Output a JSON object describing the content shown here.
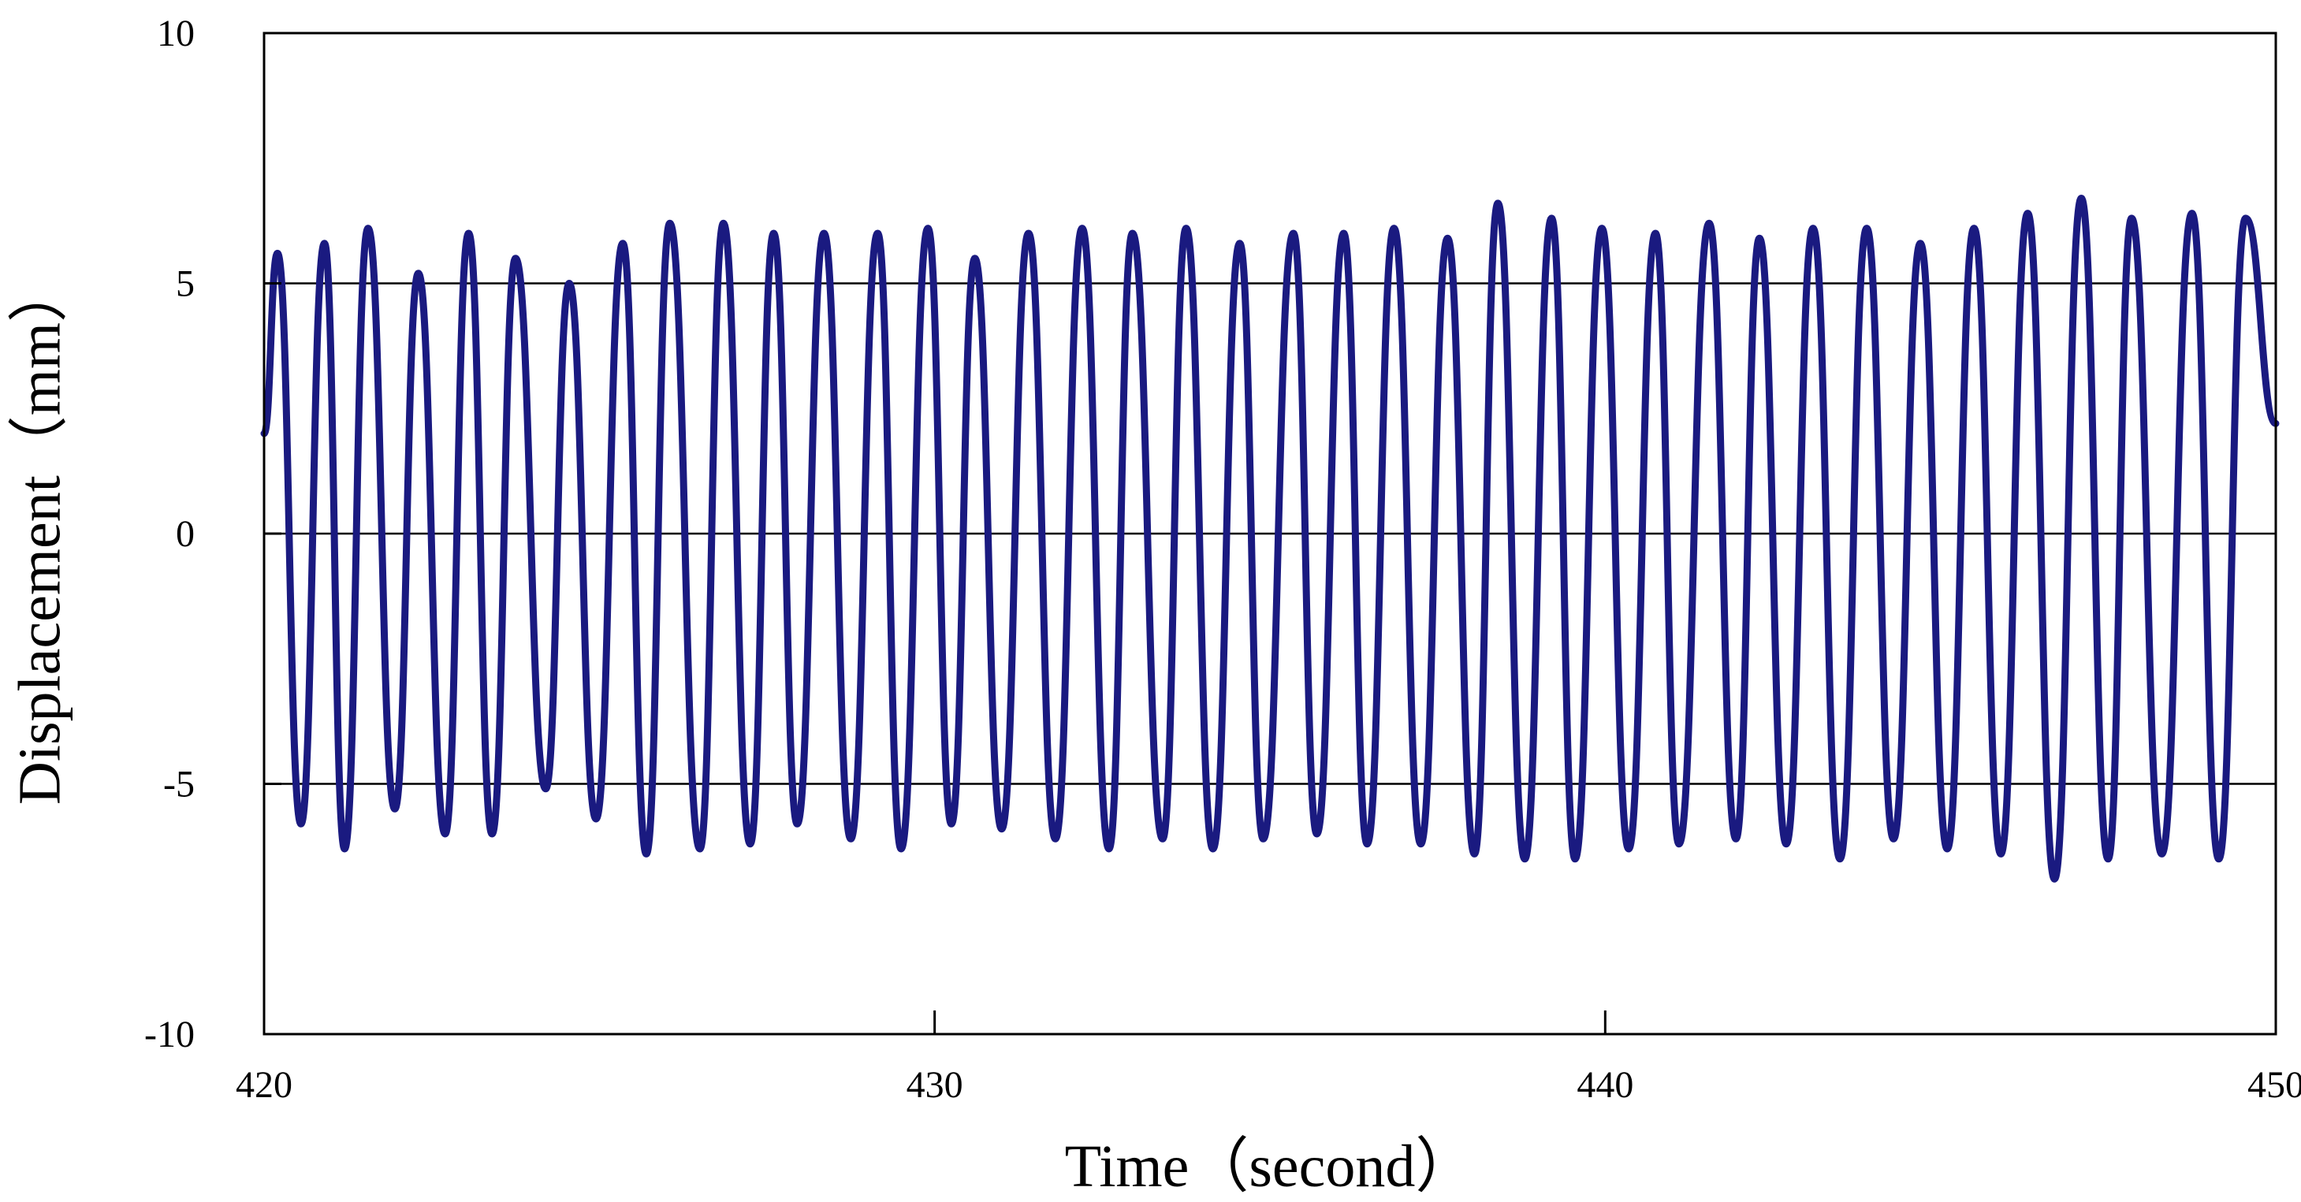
{
  "chart_data": {
    "type": "line",
    "title": "",
    "xlabel": "Time（second）",
    "ylabel": "Displacement（mm）",
    "xlim": [
      420,
      450
    ],
    "ylim": [
      -10,
      10
    ],
    "xticks": [
      {
        "value": 420,
        "label": "420"
      },
      {
        "value": 430,
        "label": "430"
      },
      {
        "value": 440,
        "label": "440"
      },
      {
        "value": 450,
        "label": "450"
      }
    ],
    "yticks": [
      {
        "value": 10,
        "label": "10"
      },
      {
        "value": 5,
        "label": "5"
      },
      {
        "value": 0,
        "label": "0"
      },
      {
        "value": -5,
        "label": "-5"
      },
      {
        "value": -10,
        "label": "-10"
      }
    ],
    "gridlines_y": [
      5,
      0,
      -5
    ],
    "grid": "horizontal",
    "legend": "none",
    "colors": {
      "line": "#1a1a80",
      "axis": "#000000",
      "grid": "#000000"
    },
    "series": [
      {
        "x": [
          420.0,
          420.2,
          420.55,
          420.9,
          421.2,
          421.55,
          421.95,
          422.3,
          422.7,
          423.05,
          423.4,
          423.75,
          424.2,
          424.55,
          424.95,
          425.35,
          425.7,
          426.05,
          426.5,
          426.85,
          427.25,
          427.6,
          427.95,
          428.35,
          428.75,
          429.15,
          429.5,
          429.9,
          430.25,
          430.6,
          431.0,
          431.4,
          431.8,
          432.2,
          432.6,
          432.95,
          433.4,
          433.75,
          434.15,
          434.55,
          434.9,
          435.35,
          435.7,
          436.1,
          436.45,
          436.85,
          437.25,
          437.65,
          438.05,
          438.4,
          438.8,
          439.2,
          439.55,
          439.95,
          440.35,
          440.75,
          441.1,
          441.55,
          441.95,
          442.3,
          442.7,
          443.1,
          443.5,
          443.9,
          444.3,
          444.7,
          445.1,
          445.5,
          445.9,
          446.3,
          446.7,
          447.1,
          447.5,
          447.85,
          448.3,
          448.75,
          449.15,
          449.55,
          450.0
        ],
        "y": [
          2.0,
          5.6,
          -5.8,
          5.8,
          -6.3,
          6.1,
          -5.5,
          5.2,
          -6.0,
          6.0,
          -6.0,
          5.5,
          -5.1,
          5.0,
          -5.7,
          5.8,
          -6.4,
          6.2,
          -6.3,
          6.2,
          -6.2,
          6.0,
          -5.8,
          6.0,
          -6.1,
          6.0,
          -6.3,
          6.1,
          -5.8,
          5.5,
          -5.9,
          6.0,
          -6.1,
          6.1,
          -6.3,
          6.0,
          -6.1,
          6.1,
          -6.3,
          5.8,
          -6.1,
          6.0,
          -6.0,
          6.0,
          -6.2,
          6.1,
          -6.2,
          5.9,
          -6.4,
          6.6,
          -6.5,
          6.3,
          -6.5,
          6.1,
          -6.3,
          6.0,
          -6.2,
          6.2,
          -6.1,
          5.9,
          -6.2,
          6.1,
          -6.5,
          6.1,
          -6.1,
          5.8,
          -6.3,
          6.1,
          -6.4,
          6.4,
          -6.9,
          6.7,
          -6.5,
          6.3,
          -6.4,
          6.4,
          -6.5,
          6.3,
          2.2
        ]
      }
    ]
  }
}
